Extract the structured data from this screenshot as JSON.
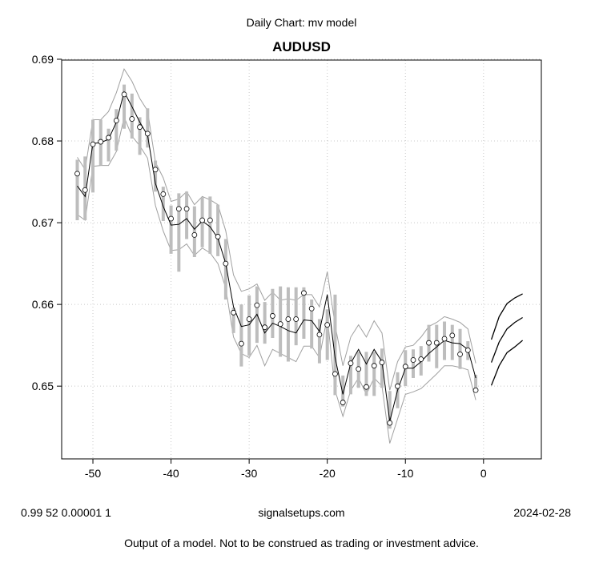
{
  "chart_data": {
    "type": "line",
    "subtitle": "Daily Chart: mv model",
    "title": "AUDUSD",
    "x_ticks": [
      -50,
      -40,
      -30,
      -20,
      -10,
      0
    ],
    "y_ticks": [
      "0.65",
      "0.66",
      "0.67",
      "0.68",
      "0.69"
    ],
    "xlim": [
      -54,
      7.4
    ],
    "ylim": [
      0.6411,
      0.6899
    ],
    "grid": true,
    "series": [
      {
        "role": "observed",
        "x": [
          -52,
          -51,
          -50,
          -49,
          -48,
          -47,
          -46,
          -45,
          -44,
          -43,
          -42,
          -41,
          -40,
          -39,
          -38,
          -37,
          -36,
          -35,
          -34,
          -33,
          -32,
          -31,
          -30,
          -29,
          -28,
          -27,
          -26,
          -25,
          -24,
          -23,
          -22,
          -21,
          -20,
          -19,
          -18,
          -17,
          -16,
          -15,
          -14,
          -13,
          -12,
          -11,
          -10,
          -9,
          -8,
          -7,
          -6,
          -5,
          -4,
          -3,
          -2,
          -1
        ],
        "y": [
          0.676,
          0.674,
          0.6796,
          0.6799,
          0.6804,
          0.6825,
          0.6857,
          0.6827,
          0.6817,
          0.6809,
          0.6765,
          0.6735,
          0.6705,
          0.6717,
          0.6717,
          0.6685,
          0.6703,
          0.6703,
          0.6683,
          0.665,
          0.659,
          0.6552,
          0.6582,
          0.6599,
          0.6572,
          0.6586,
          0.6576,
          0.6582,
          0.6582,
          0.6614,
          0.6595,
          0.6563,
          0.6575,
          0.6515,
          0.648,
          0.6528,
          0.6521,
          0.6499,
          0.6525,
          0.6529,
          0.6455,
          0.65,
          0.6524,
          0.6532,
          0.6533,
          0.6553,
          0.6553,
          0.6558,
          0.6562,
          0.6539,
          0.6544,
          0.6495
        ],
        "bar_low": [
          0.6703,
          0.6703,
          0.6737,
          0.677,
          0.6775,
          0.6788,
          0.6815,
          0.6803,
          0.6783,
          0.6792,
          0.6738,
          0.6702,
          0.6662,
          0.664,
          0.668,
          0.6658,
          0.667,
          0.6662,
          0.6659,
          0.6606,
          0.6565,
          0.6524,
          0.6537,
          0.6553,
          0.6552,
          0.6559,
          0.6536,
          0.653,
          0.655,
          0.6558,
          0.6546,
          0.6528,
          0.6532,
          0.6489,
          0.6475,
          0.649,
          0.6498,
          0.6488,
          0.6488,
          0.6498,
          0.6448,
          0.6473,
          0.65,
          0.651,
          0.6513,
          0.653,
          0.6522,
          0.6532,
          0.6532,
          0.6521,
          0.6532,
          0.6493
        ],
        "bar_high": [
          0.6777,
          0.6781,
          0.6826,
          0.6826,
          0.6815,
          0.6839,
          0.6869,
          0.6858,
          0.6829,
          0.684,
          0.6776,
          0.6744,
          0.6721,
          0.6736,
          0.6738,
          0.672,
          0.6731,
          0.6732,
          0.6722,
          0.668,
          0.6596,
          0.66,
          0.6611,
          0.6622,
          0.6603,
          0.6619,
          0.6622,
          0.6621,
          0.6621,
          0.6621,
          0.6606,
          0.6582,
          0.6594,
          0.6612,
          0.6513,
          0.6537,
          0.6542,
          0.6542,
          0.6542,
          0.6546,
          0.6494,
          0.6517,
          0.6544,
          0.6545,
          0.6549,
          0.6575,
          0.6575,
          0.6579,
          0.6575,
          0.657,
          0.6555,
          0.6514
        ]
      },
      {
        "role": "model",
        "x": [
          -52,
          -51,
          -50,
          -49,
          -48,
          -47,
          -46,
          -45,
          -44,
          -43,
          -42,
          -41,
          -40,
          -39,
          -38,
          -37,
          -36,
          -35,
          -34,
          -33,
          -32,
          -31,
          -30,
          -29,
          -28,
          -27,
          -26,
          -25,
          -24,
          -23,
          -22,
          -21,
          -20,
          -19,
          -18,
          -17,
          -16,
          -15,
          -14,
          -13,
          -12,
          -11,
          -10,
          -9,
          -8,
          -7,
          -6,
          -5,
          -4,
          -3,
          -2,
          -1
        ],
        "y": [
          0.6745,
          0.6732,
          0.6797,
          0.6798,
          0.6802,
          0.6823,
          0.686,
          0.6842,
          0.6823,
          0.6807,
          0.6748,
          0.672,
          0.6697,
          0.6698,
          0.6705,
          0.6692,
          0.6702,
          0.6695,
          0.6681,
          0.665,
          0.6597,
          0.6573,
          0.6575,
          0.6588,
          0.6565,
          0.6577,
          0.6573,
          0.6568,
          0.6565,
          0.6581,
          0.658,
          0.6567,
          0.6612,
          0.6535,
          0.649,
          0.6528,
          0.6545,
          0.6527,
          0.6545,
          0.653,
          0.6457,
          0.6495,
          0.6522,
          0.6522,
          0.653,
          0.654,
          0.6548,
          0.6556,
          0.6553,
          0.6552,
          0.6545,
          0.651
        ]
      },
      {
        "role": "upper_band",
        "x": [
          -52,
          -51,
          -50,
          -49,
          -48,
          -47,
          -46,
          -45,
          -44,
          -43,
          -42,
          -41,
          -40,
          -39,
          -38,
          -37,
          -36,
          -35,
          -34,
          -33,
          -32,
          -31,
          -30,
          -29,
          -28,
          -27,
          -26,
          -25,
          -24,
          -23,
          -22,
          -21,
          -20,
          -19,
          -18,
          -17,
          -16,
          -15,
          -14,
          -13,
          -12,
          -11,
          -10,
          -9,
          -8,
          -7,
          -6,
          -5,
          -4,
          -3,
          -2,
          -1
        ],
        "y": [
          0.678,
          0.6765,
          0.6826,
          0.6826,
          0.6836,
          0.6859,
          0.6888,
          0.6873,
          0.6852,
          0.6837,
          0.6774,
          0.6755,
          0.6726,
          0.6729,
          0.6738,
          0.6722,
          0.6732,
          0.6728,
          0.6722,
          0.669,
          0.6636,
          0.6616,
          0.6619,
          0.6625,
          0.6605,
          0.6615,
          0.6605,
          0.6607,
          0.6605,
          0.6612,
          0.6612,
          0.6597,
          0.664,
          0.6575,
          0.6525,
          0.656,
          0.6575,
          0.656,
          0.658,
          0.6565,
          0.6495,
          0.653,
          0.6548,
          0.655,
          0.656,
          0.6573,
          0.6578,
          0.6585,
          0.6582,
          0.6578,
          0.657,
          0.6528
        ]
      },
      {
        "role": "lower_band",
        "x": [
          -52,
          -51,
          -50,
          -49,
          -48,
          -47,
          -46,
          -45,
          -44,
          -43,
          -42,
          -41,
          -40,
          -39,
          -38,
          -37,
          -36,
          -35,
          -34,
          -33,
          -32,
          -31,
          -30,
          -29,
          -28,
          -27,
          -26,
          -25,
          -24,
          -23,
          -22,
          -21,
          -20,
          -19,
          -18,
          -17,
          -16,
          -15,
          -14,
          -13,
          -12,
          -11,
          -10,
          -9,
          -8,
          -7,
          -6,
          -5,
          -4,
          -3,
          -2,
          -1
        ],
        "y": [
          0.671,
          0.6703,
          0.6769,
          0.677,
          0.677,
          0.6787,
          0.6829,
          0.6806,
          0.6794,
          0.6779,
          0.6721,
          0.669,
          0.6666,
          0.6667,
          0.6674,
          0.666,
          0.6669,
          0.6663,
          0.665,
          0.662,
          0.656,
          0.654,
          0.6535,
          0.655,
          0.6525,
          0.6545,
          0.654,
          0.6535,
          0.653,
          0.6549,
          0.6549,
          0.6535,
          0.6585,
          0.6495,
          0.6463,
          0.6495,
          0.651,
          0.649,
          0.651,
          0.65,
          0.643,
          0.646,
          0.649,
          0.6493,
          0.6497,
          0.6506,
          0.6515,
          0.6525,
          0.6525,
          0.6523,
          0.652,
          0.6483
        ]
      },
      {
        "role": "forecast_mid",
        "x": [
          1,
          2,
          3,
          4,
          5
        ],
        "y": [
          0.6529,
          0.6554,
          0.657,
          0.6578,
          0.6584
        ]
      },
      {
        "role": "forecast_upper",
        "x": [
          1,
          2,
          3,
          4,
          5
        ],
        "y": [
          0.6557,
          0.6585,
          0.6601,
          0.6608,
          0.6613
        ]
      },
      {
        "role": "forecast_lower",
        "x": [
          1,
          2,
          3,
          4,
          5
        ],
        "y": [
          0.6501,
          0.6525,
          0.6541,
          0.6548,
          0.6556
        ]
      }
    ]
  },
  "footer": {
    "params": "0.99 52 0.00001 1",
    "site": "signalsetups.com",
    "date": "2024-02-28",
    "disclaimer": "Output of a model.  Not to be construed as trading or investment advice."
  },
  "colors": {
    "observed_bar": "#bdbdbd",
    "band_line": "#a0a0a0",
    "model_line": "#000000",
    "grid": "#c8c8c8"
  }
}
